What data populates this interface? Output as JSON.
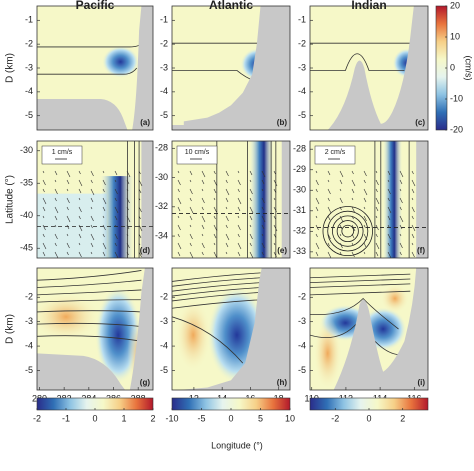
{
  "chart_data": [
    {
      "type": "heatmap",
      "title": "Pacific",
      "ylabel": "D (km)",
      "label": "(a)",
      "ylim": [
        -5.6,
        -0.4
      ],
      "yticks": [
        -1,
        -2,
        -3,
        -4,
        -5
      ]
    },
    {
      "type": "heatmap",
      "title": "Atlantic",
      "label": "(b)",
      "ylim": [
        -5.6,
        -0.4
      ],
      "yticks": [
        -1,
        -2,
        -3,
        -4,
        -5
      ]
    },
    {
      "type": "heatmap",
      "title": "Indian",
      "label": "(c)",
      "ylim": [
        -5.6,
        -0.4
      ],
      "yticks": [
        -1,
        -2,
        -3,
        -4,
        -5
      ]
    },
    {
      "type": "quiver",
      "ylabel": "Latitude (°)",
      "label": "(d)",
      "scale_label": "1 cm/s",
      "ylim": [
        -46.5,
        -28.5
      ],
      "yticks": [
        -30,
        -35,
        -40,
        -45
      ]
    },
    {
      "type": "quiver",
      "label": "(e)",
      "scale_label": "10 cm/s",
      "ylim": [
        -35.5,
        -27.5
      ],
      "yticks": [
        -28,
        -30,
        -32,
        -34
      ]
    },
    {
      "type": "quiver",
      "label": "(f)",
      "scale_label": "2 cm/s",
      "ylim": [
        -33.3,
        -27.6
      ],
      "yticks": [
        -28,
        -29,
        -30,
        -31,
        -32,
        -33
      ]
    },
    {
      "type": "heatmap",
      "ylabel": "D (km)",
      "label": "(g)",
      "ylim": [
        -5.8,
        -0.8
      ],
      "yticks": [
        -2,
        -3,
        -4,
        -5
      ],
      "xlim": [
        279.8,
        289.2
      ],
      "xticks": [
        280,
        282,
        284,
        286,
        288
      ]
    },
    {
      "type": "heatmap",
      "label": "(h)",
      "ylim": [
        -5.8,
        -0.8
      ],
      "yticks": [
        -2,
        -3,
        -4,
        -5
      ],
      "xlim": [
        10.45,
        18.8
      ],
      "xticks": [
        12,
        14,
        16,
        18
      ]
    },
    {
      "type": "heatmap",
      "label": "(i)",
      "ylim": [
        -5.8,
        -0.8
      ],
      "yticks": [
        -2,
        -3,
        -4,
        -5
      ],
      "xlim": [
        109.9,
        116.8
      ],
      "xticks": [
        110,
        112,
        114,
        116
      ]
    }
  ],
  "colormap": [
    "#2a2c8a",
    "#2f6fb5",
    "#8ec3e3",
    "#e6f4ee",
    "#f6f8c8",
    "#f6cf87",
    "#e8733d",
    "#b2182b"
  ],
  "colorbars": [
    {
      "label": "(cm/s)",
      "lim": [
        -20,
        20
      ],
      "ticks": [
        20,
        10,
        0,
        -10,
        -20
      ]
    },
    {
      "lim": [
        -2,
        2
      ],
      "ticks": [
        -2,
        -1,
        0,
        1,
        2
      ]
    },
    {
      "lim": [
        -10,
        10
      ],
      "ticks": [
        -10,
        -5,
        0,
        5,
        10
      ]
    },
    {
      "lim": [
        -3.5,
        3.5
      ],
      "ticks": [
        -2,
        0,
        2
      ]
    }
  ],
  "xlabel": "Longitude (°)"
}
